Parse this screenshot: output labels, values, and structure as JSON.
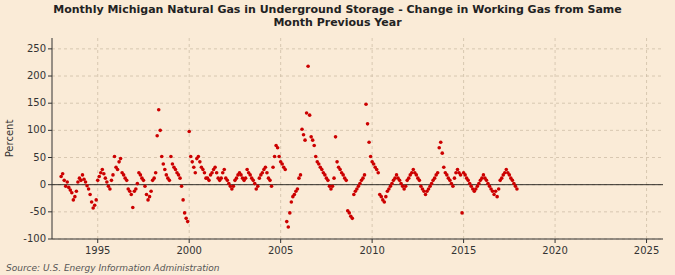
{
  "chart_data": {
    "type": "scatter",
    "title": "Monthly Michigan Natural Gas in Underground Storage - Change in Working Gas from Same\nMonth Previous Year",
    "y_label": "Percent",
    "source": "Source: U.S. Energy Information Administration",
    "color": "#cc0000",
    "grid": true,
    "ylim": [
      -100,
      270
    ],
    "yticks": [
      -100,
      -50,
      0,
      50,
      100,
      150,
      200,
      250
    ],
    "xlim": [
      1992.5,
      2025.9
    ],
    "xticks": [
      1995,
      2000,
      2005,
      2010,
      2015,
      2020,
      2025
    ],
    "x": [
      1993,
      1993.0833333333333,
      1993.1666666666667,
      1993.25,
      1993.3333333333333,
      1993.4166666666667,
      1993.5,
      1993.5833333333333,
      1993.6666666666667,
      1993.75,
      1993.8333333333333,
      1993.9166666666667,
      1994,
      1994.0833333333333,
      1994.1666666666667,
      1994.25,
      1994.3333333333333,
      1994.4166666666667,
      1994.5,
      1994.5833333333333,
      1994.6666666666667,
      1994.75,
      1994.8333333333333,
      1994.9166666666667,
      1995,
      1995.0833333333333,
      1995.1666666666667,
      1995.25,
      1995.3333333333333,
      1995.4166666666667,
      1995.5,
      1995.5833333333333,
      1995.6666666666667,
      1995.75,
      1995.8333333333333,
      1995.9166666666667,
      1996,
      1996.0833333333333,
      1996.1666666666667,
      1996.25,
      1996.3333333333333,
      1996.4166666666667,
      1996.5,
      1996.5833333333333,
      1996.6666666666667,
      1996.75,
      1996.8333333333333,
      1996.9166666666667,
      1997,
      1997.0833333333333,
      1997.1666666666667,
      1997.25,
      1997.3333333333333,
      1997.4166666666667,
      1997.5,
      1997.5833333333333,
      1997.6666666666667,
      1997.75,
      1997.8333333333333,
      1997.9166666666667,
      1998,
      1998.0833333333333,
      1998.1666666666667,
      1998.25,
      1998.3333333333333,
      1998.4166666666667,
      1998.5,
      1998.5833333333333,
      1998.6666666666667,
      1998.75,
      1998.8333333333333,
      1998.9166666666667,
      1999,
      1999.0833333333333,
      1999.1666666666667,
      1999.25,
      1999.3333333333333,
      1999.4166666666667,
      1999.5,
      1999.5833333333333,
      1999.6666666666667,
      1999.75,
      1999.8333333333333,
      1999.9166666666667,
      2000,
      2000.0833333333333,
      2000.1666666666667,
      2000.25,
      2000.3333333333333,
      2000.4166666666667,
      2000.5,
      2000.5833333333333,
      2000.6666666666667,
      2000.75,
      2000.8333333333333,
      2000.9166666666667,
      2001,
      2001.0833333333333,
      2001.1666666666667,
      2001.25,
      2001.3333333333333,
      2001.4166666666667,
      2001.5,
      2001.5833333333333,
      2001.6666666666667,
      2001.75,
      2001.8333333333333,
      2001.9166666666667,
      2002,
      2002.0833333333333,
      2002.1666666666667,
      2002.25,
      2002.3333333333333,
      2002.4166666666667,
      2002.5,
      2002.5833333333333,
      2002.6666666666667,
      2002.75,
      2002.8333333333333,
      2002.9166666666667,
      2003,
      2003.0833333333333,
      2003.1666666666667,
      2003.25,
      2003.3333333333333,
      2003.4166666666667,
      2003.5,
      2003.5833333333333,
      2003.6666666666667,
      2003.75,
      2003.8333333333333,
      2003.9166666666667,
      2004,
      2004.0833333333333,
      2004.1666666666667,
      2004.25,
      2004.3333333333333,
      2004.4166666666667,
      2004.5,
      2004.5833333333333,
      2004.6666666666667,
      2004.75,
      2004.8333333333333,
      2004.9166666666667,
      2005,
      2005.0833333333333,
      2005.1666666666667,
      2005.25,
      2005.3333333333333,
      2005.4166666666667,
      2005.5,
      2005.5833333333333,
      2005.6666666666667,
      2005.75,
      2005.8333333333333,
      2005.9166666666667,
      2006,
      2006.0833333333333,
      2006.1666666666667,
      2006.25,
      2006.3333333333333,
      2006.4166666666667,
      2006.5,
      2006.5833333333333,
      2006.6666666666667,
      2006.75,
      2006.8333333333333,
      2006.9166666666667,
      2007,
      2007.0833333333333,
      2007.1666666666667,
      2007.25,
      2007.3333333333333,
      2007.4166666666667,
      2007.5,
      2007.5833333333333,
      2007.6666666666667,
      2007.75,
      2007.8333333333333,
      2007.9166666666667,
      2008,
      2008.0833333333333,
      2008.1666666666667,
      2008.25,
      2008.3333333333333,
      2008.4166666666667,
      2008.5,
      2008.5833333333333,
      2008.6666666666667,
      2008.75,
      2008.8333333333333,
      2008.9166666666667,
      2009,
      2009.0833333333333,
      2009.1666666666667,
      2009.25,
      2009.3333333333333,
      2009.4166666666667,
      2009.5,
      2009.5833333333333,
      2009.6666666666667,
      2009.75,
      2009.8333333333333,
      2009.9166666666667,
      2010,
      2010.0833333333333,
      2010.1666666666667,
      2010.25,
      2010.3333333333333,
      2010.4166666666667,
      2010.5,
      2010.5833333333333,
      2010.6666666666667,
      2010.75,
      2010.8333333333333,
      2010.9166666666667,
      2011,
      2011.0833333333333,
      2011.1666666666667,
      2011.25,
      2011.3333333333333,
      2011.4166666666667,
      2011.5,
      2011.5833333333333,
      2011.6666666666667,
      2011.75,
      2011.8333333333333,
      2011.9166666666667,
      2012,
      2012.0833333333333,
      2012.1666666666667,
      2012.25,
      2012.3333333333333,
      2012.4166666666667,
      2012.5,
      2012.5833333333333,
      2012.6666666666667,
      2012.75,
      2012.8333333333333,
      2012.9166666666667,
      2013,
      2013.0833333333333,
      2013.1666666666667,
      2013.25,
      2013.3333333333333,
      2013.4166666666667,
      2013.5,
      2013.5833333333333,
      2013.6666666666667,
      2013.75,
      2013.8333333333333,
      2013.9166666666667,
      2014,
      2014.0833333333333,
      2014.1666666666667,
      2014.25,
      2014.3333333333333,
      2014.4166666666667,
      2014.5,
      2014.5833333333333,
      2014.6666666666667,
      2014.75,
      2014.8333333333333,
      2014.9166666666667,
      2015,
      2015.0833333333333,
      2015.1666666666667,
      2015.25,
      2015.3333333333333,
      2015.4166666666667,
      2015.5,
      2015.5833333333333,
      2015.6666666666667,
      2015.75,
      2015.8333333333333,
      2015.9166666666667,
      2016,
      2016.0833333333333,
      2016.1666666666667,
      2016.25,
      2016.3333333333333,
      2016.4166666666667,
      2016.5,
      2016.5833333333333,
      2016.6666666666667,
      2016.75,
      2016.8333333333333,
      2016.9166666666667,
      2017,
      2017.0833333333333,
      2017.1666666666667,
      2017.25,
      2017.3333333333333,
      2017.4166666666667,
      2017.5,
      2017.5833333333333,
      2017.6666666666667,
      2017.75,
      2017.8333333333333,
      2017.9166666666667
    ],
    "values": [
      15,
      20,
      8,
      -3,
      5,
      -5,
      -10,
      -15,
      -28,
      -22,
      -12,
      5,
      12,
      8,
      18,
      10,
      5,
      -2,
      -8,
      -18,
      -32,
      -43,
      -38,
      -28,
      8,
      15,
      22,
      28,
      20,
      12,
      5,
      -3,
      -8,
      8,
      18,
      52,
      32,
      28,
      42,
      48,
      22,
      18,
      12,
      8,
      -8,
      -12,
      -18,
      -42,
      -12,
      -8,
      2,
      22,
      18,
      12,
      8,
      -3,
      -18,
      -28,
      -22,
      -12,
      8,
      12,
      22,
      90,
      138,
      100,
      52,
      38,
      28,
      18,
      12,
      8,
      52,
      38,
      32,
      28,
      22,
      18,
      12,
      -3,
      -28,
      -52,
      -62,
      -68,
      98,
      52,
      42,
      32,
      22,
      48,
      52,
      42,
      32,
      28,
      22,
      12,
      12,
      8,
      18,
      22,
      28,
      32,
      22,
      12,
      8,
      12,
      22,
      28,
      12,
      8,
      2,
      -3,
      -8,
      -3,
      8,
      12,
      18,
      22,
      18,
      12,
      8,
      12,
      28,
      22,
      18,
      12,
      8,
      2,
      -8,
      -3,
      12,
      18,
      22,
      28,
      32,
      22,
      12,
      8,
      -3,
      32,
      52,
      72,
      68,
      52,
      42,
      38,
      32,
      28,
      -68,
      -78,
      -52,
      -32,
      -22,
      -18,
      -12,
      -8,
      12,
      18,
      102,
      92,
      82,
      132,
      218,
      128,
      88,
      82,
      72,
      52,
      42,
      38,
      32,
      28,
      22,
      18,
      12,
      8,
      -3,
      -8,
      -3,
      12,
      88,
      42,
      32,
      28,
      22,
      18,
      12,
      8,
      -48,
      -52,
      -58,
      -62,
      -18,
      -12,
      -8,
      -3,
      2,
      8,
      12,
      18,
      148,
      112,
      78,
      52,
      42,
      38,
      32,
      28,
      22,
      -18,
      -22,
      -28,
      -32,
      -22,
      -12,
      -8,
      -3,
      2,
      8,
      12,
      18,
      12,
      8,
      2,
      -3,
      -8,
      -3,
      8,
      12,
      18,
      22,
      28,
      22,
      18,
      12,
      8,
      -3,
      -8,
      -12,
      -18,
      -12,
      -8,
      -3,
      2,
      8,
      12,
      18,
      22,
      68,
      78,
      58,
      32,
      22,
      18,
      12,
      8,
      2,
      -3,
      12,
      22,
      28,
      22,
      18,
      -52,
      22,
      18,
      12,
      8,
      2,
      -3,
      -8,
      -12,
      -8,
      -3,
      2,
      8,
      12,
      18,
      12,
      8,
      2,
      -3,
      -8,
      -12,
      -18,
      -12,
      -22,
      -8,
      8,
      12,
      18,
      22,
      28,
      22,
      18,
      12,
      8,
      2,
      -3,
      -8
    ]
  }
}
